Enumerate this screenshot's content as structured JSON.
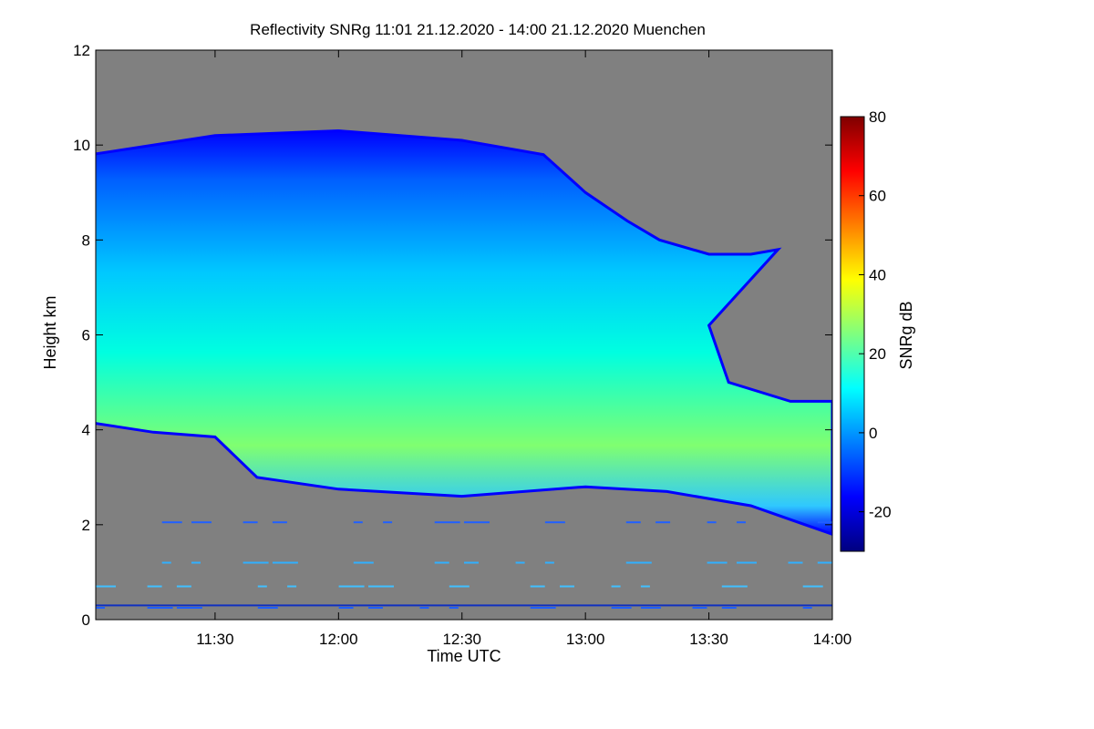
{
  "chart_data": {
    "type": "heatmap",
    "title": "Reflectivity SNRg   11:01 21.12.2020 - 14:00 21.12.2020 Muenchen",
    "xlabel": "Time UTC",
    "ylabel": "Height km",
    "xlim": [
      "11:01",
      "14:00"
    ],
    "ylim": [
      0,
      12
    ],
    "x_ticks": [
      "11:30",
      "12:00",
      "12:30",
      "13:00",
      "13:30",
      "14:00"
    ],
    "y_ticks": [
      "0",
      "2",
      "4",
      "6",
      "8",
      "10",
      "12"
    ],
    "grid": false,
    "background_color": "#808080",
    "colorbar": {
      "label": "SNRg dB",
      "range": [
        -30,
        80
      ],
      "ticks": [
        "-20",
        "0",
        "20",
        "40",
        "60",
        "80"
      ],
      "colormap": "jet",
      "colors": [
        "#00007f",
        "#0000ff",
        "#007fff",
        "#00ffff",
        "#7fff7f",
        "#ffff00",
        "#ff7f00",
        "#ff0000",
        "#7f0000"
      ]
    },
    "cloud": {
      "top_km": [
        [
          11.0,
          9.8
        ],
        [
          11.5,
          10.2
        ],
        [
          12.0,
          10.3
        ],
        [
          12.5,
          10.1
        ],
        [
          12.83,
          9.8
        ],
        [
          13.0,
          9.0
        ],
        [
          13.17,
          8.4
        ],
        [
          13.3,
          8.0
        ],
        [
          13.5,
          7.7
        ],
        [
          13.67,
          7.7
        ],
        [
          13.78,
          7.8
        ],
        [
          13.5,
          6.2
        ],
        [
          13.58,
          5.0
        ],
        [
          13.83,
          4.6
        ],
        [
          14.0,
          4.6
        ]
      ],
      "base_km": [
        [
          11.0,
          4.15
        ],
        [
          11.25,
          3.95
        ],
        [
          11.5,
          3.85
        ],
        [
          11.67,
          3.0
        ],
        [
          12.0,
          2.75
        ],
        [
          12.5,
          2.6
        ],
        [
          13.0,
          2.8
        ],
        [
          13.33,
          2.7
        ],
        [
          13.67,
          2.4
        ],
        [
          14.0,
          1.8
        ]
      ],
      "core_snr_db": 25,
      "edge_snr_db": -20
    },
    "series": []
  }
}
